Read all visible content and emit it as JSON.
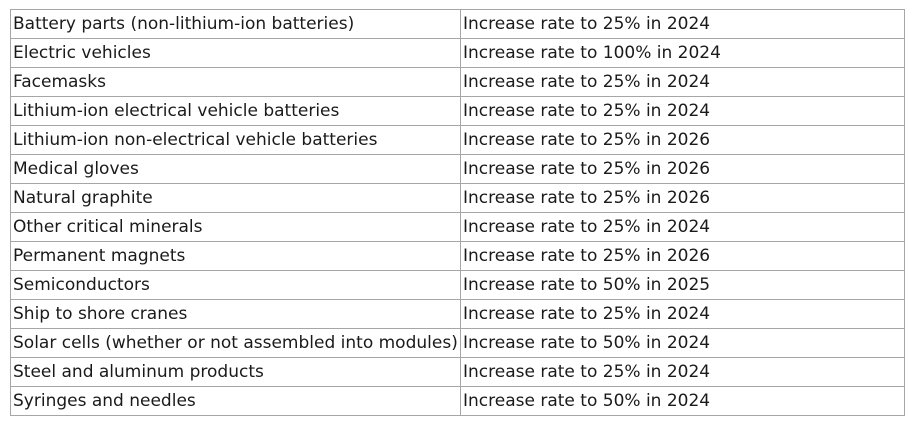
{
  "table": {
    "rows": [
      {
        "product": "Battery parts (non-lithium-ion batteries)",
        "action": "Increase rate to 25% in 2024"
      },
      {
        "product": "Electric vehicles",
        "action": "Increase rate to 100% in 2024"
      },
      {
        "product": "Facemasks",
        "action": "Increase rate to 25% in 2024"
      },
      {
        "product": "Lithium-ion electrical vehicle batteries",
        "action": "Increase rate to 25% in 2024"
      },
      {
        "product": "Lithium-ion non-electrical vehicle batteries",
        "action": "Increase rate to 25% in 2026"
      },
      {
        "product": "Medical gloves",
        "action": "Increase rate to 25% in 2026"
      },
      {
        "product": "Natural graphite",
        "action": "Increase rate to 25% in 2026"
      },
      {
        "product": "Other critical minerals",
        "action": "Increase rate to 25% in 2024"
      },
      {
        "product": "Permanent magnets",
        "action": "Increase rate to 25% in 2026"
      },
      {
        "product": "Semiconductors",
        "action": "Increase rate to 50% in 2025"
      },
      {
        "product": "Ship to shore cranes",
        "action": "Increase rate to 25% in 2024"
      },
      {
        "product": "Solar cells (whether or not assembled into modules)",
        "action": "Increase rate to 50% in 2024"
      },
      {
        "product": "Steel and aluminum products",
        "action": "Increase rate to 25% in 2024"
      },
      {
        "product": "Syringes and needles",
        "action": "Increase rate to 50% in 2024"
      }
    ]
  },
  "colors": {
    "border": "#a6a6a6",
    "text": "#1a1a1a",
    "background": "#ffffff"
  }
}
